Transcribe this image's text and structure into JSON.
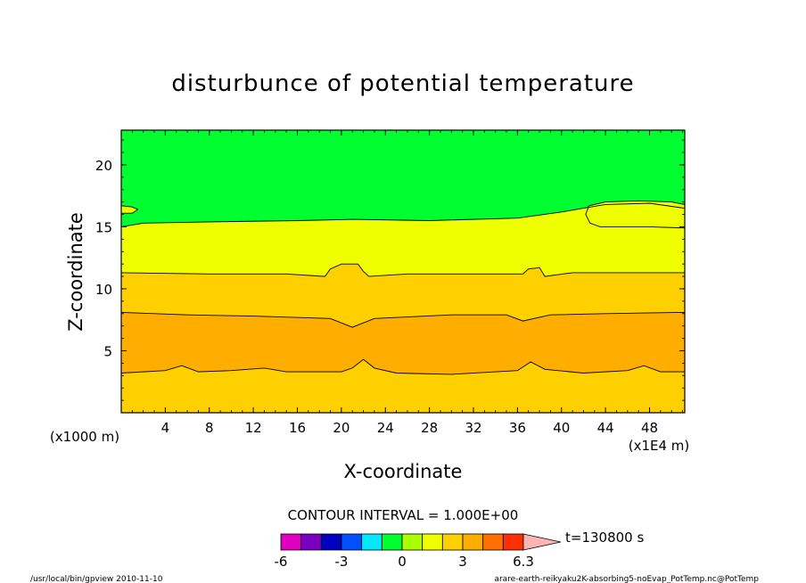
{
  "chart_data": {
    "type": "heatmap",
    "title": "disturbunce of potential temperature",
    "xlabel": "X-coordinate",
    "ylabel": "Z-coordinate",
    "x_unit": "(x1E4 m)",
    "y_unit": "(x1000 m)",
    "xlim": [
      0,
      51.2
    ],
    "ylim": [
      0,
      22.8
    ],
    "xticks": [
      4,
      8,
      12,
      16,
      20,
      24,
      28,
      32,
      36,
      40,
      44,
      48
    ],
    "yticks": [
      5,
      10,
      15,
      20
    ],
    "contour_interval_text": "CONTOUR INTERVAL = 1.000E+00",
    "time_label": "t=130800 s",
    "colorbar": {
      "levels": [
        -6,
        -5,
        -4,
        -3,
        -2,
        -1,
        0,
        1,
        2,
        3,
        4,
        5,
        6,
        6.3
      ],
      "tick_labels": [
        "-6",
        "-3",
        "0",
        "3",
        "6.3"
      ],
      "tick_values": [
        -6,
        -3,
        0,
        3,
        6.3
      ],
      "colors": [
        "#e000c0",
        "#7a00c0",
        "#0000c0",
        "#0050ff",
        "#00e8ff",
        "#00ff30",
        "#aaff00",
        "#f0ff00",
        "#ffd000",
        "#ffae00",
        "#ff7000",
        "#ff3000",
        "#ff7878",
        "#ffb4b4"
      ]
    },
    "contour_lines": [
      {
        "level": 4,
        "points": [
          [
            0,
            3.2
          ],
          [
            4,
            3.4
          ],
          [
            5.5,
            3.8
          ],
          [
            7,
            3.3
          ],
          [
            10,
            3.4
          ],
          [
            13,
            3.6
          ],
          [
            15,
            3.3
          ],
          [
            20,
            3.3
          ],
          [
            21,
            3.6
          ],
          [
            22,
            4.3
          ],
          [
            23,
            3.6
          ],
          [
            25,
            3.2
          ],
          [
            30,
            3.1
          ],
          [
            36,
            3.4
          ],
          [
            37.2,
            4.1
          ],
          [
            38.5,
            3.5
          ],
          [
            42,
            3.2
          ],
          [
            46,
            3.4
          ],
          [
            47.5,
            3.8
          ],
          [
            49,
            3.3
          ],
          [
            51.2,
            3.3
          ]
        ]
      },
      {
        "level": 3,
        "points": [
          [
            0,
            8.1
          ],
          [
            6,
            7.9
          ],
          [
            12,
            7.8
          ],
          [
            19,
            7.6
          ],
          [
            21,
            6.9
          ],
          [
            23,
            7.6
          ],
          [
            30,
            7.9
          ],
          [
            35,
            7.9
          ],
          [
            36.5,
            7.4
          ],
          [
            39,
            7.9
          ],
          [
            44,
            8.0
          ],
          [
            51.2,
            8.1
          ]
        ]
      },
      {
        "level": 2,
        "points": [
          [
            0,
            11.3
          ],
          [
            8,
            11.2
          ],
          [
            15,
            11.2
          ],
          [
            18.5,
            11.0
          ],
          [
            19,
            11.6
          ],
          [
            20,
            12.0
          ],
          [
            21.5,
            12.0
          ],
          [
            22,
            11.4
          ],
          [
            22.5,
            11.0
          ],
          [
            26,
            11.2
          ],
          [
            36.5,
            11.2
          ],
          [
            37,
            11.6
          ],
          [
            38,
            11.7
          ],
          [
            38.5,
            11.0
          ],
          [
            41,
            11.3
          ],
          [
            51.2,
            11.3
          ]
        ]
      },
      {
        "level": 1,
        "points": [
          [
            0,
            15.0
          ],
          [
            2,
            15.3
          ],
          [
            8,
            15.4
          ],
          [
            16,
            15.5
          ],
          [
            21,
            15.6
          ],
          [
            28,
            15.5
          ],
          [
            36,
            15.7
          ],
          [
            40,
            16.2
          ],
          [
            42,
            16.5
          ],
          [
            44,
            16.8
          ],
          [
            48,
            16.9
          ],
          [
            51.2,
            16.5
          ]
        ]
      },
      {
        "level": 1,
        "closed": true,
        "points": [
          [
            42.2,
            16.0
          ],
          [
            42.5,
            16.7
          ],
          [
            44,
            17.0
          ],
          [
            47,
            17.1
          ],
          [
            50,
            17.0
          ],
          [
            51.2,
            16.8
          ],
          [
            51.2,
            14.9
          ],
          [
            48,
            15.0
          ],
          [
            45,
            15.0
          ],
          [
            43.5,
            15.0
          ],
          [
            42.6,
            15.3
          ]
        ]
      },
      {
        "level": 1,
        "closed": true,
        "points": [
          [
            0,
            16.7
          ],
          [
            1,
            16.6
          ],
          [
            1.5,
            16.4
          ],
          [
            1,
            16.1
          ],
          [
            0,
            16.1
          ]
        ]
      }
    ],
    "footer_left": "/usr/local/bin/gpview  2010-11-10",
    "footer_right": "arare-earth-reikyaku2K-absorbing5-noEvap_PotTemp.nc@PotTemp"
  }
}
